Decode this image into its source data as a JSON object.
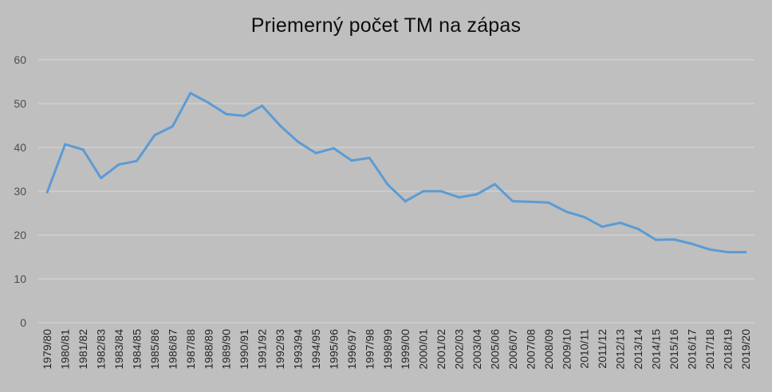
{
  "chart_data": {
    "type": "line",
    "title": "Priemerný počet TM na zápas",
    "xlabel": "",
    "ylabel": "",
    "ylim": [
      0,
      60
    ],
    "yticks": [
      0,
      10,
      20,
      30,
      40,
      50,
      60
    ],
    "grid": true,
    "legend": "none",
    "colors": {
      "background": "#bfbfbf",
      "grid": "#d9d9d9",
      "line": "#5b9bd5"
    },
    "categories": [
      "1979/80",
      "1980/81",
      "1981/82",
      "1982/83",
      "1983/84",
      "1984/85",
      "1985/86",
      "1986/87",
      "1987/88",
      "1988/89",
      "1989/90",
      "1990/91",
      "1991/92",
      "1992/93",
      "1993/94",
      "1994/95",
      "1995/96",
      "1996/97",
      "1997/98",
      "1998/99",
      "1999/00",
      "2000/01",
      "2001/02",
      "2002/03",
      "2003/04",
      "2005/06",
      "2006/07",
      "2007/08",
      "2008/09",
      "2009/10",
      "2010/11",
      "2011/12",
      "2012/13",
      "2013/14",
      "2014/15",
      "2015/16",
      "2016/17",
      "2017/18",
      "2018/19",
      "2019/20"
    ],
    "series": [
      {
        "values": [
          29.8,
          40.7,
          39.5,
          33.0,
          36.1,
          36.9,
          42.8,
          44.8,
          52.4,
          50.2,
          47.6,
          47.2,
          49.5,
          45.0,
          41.3,
          38.7,
          39.8,
          37.0,
          37.6,
          31.6,
          27.7,
          30.0,
          30.0,
          28.6,
          29.3,
          31.6,
          27.7,
          27.6,
          27.4,
          25.3,
          24.1,
          21.9,
          22.8,
          21.4,
          18.9,
          19.0,
          18.0,
          16.7,
          16.1,
          16.1
        ]
      }
    ]
  }
}
